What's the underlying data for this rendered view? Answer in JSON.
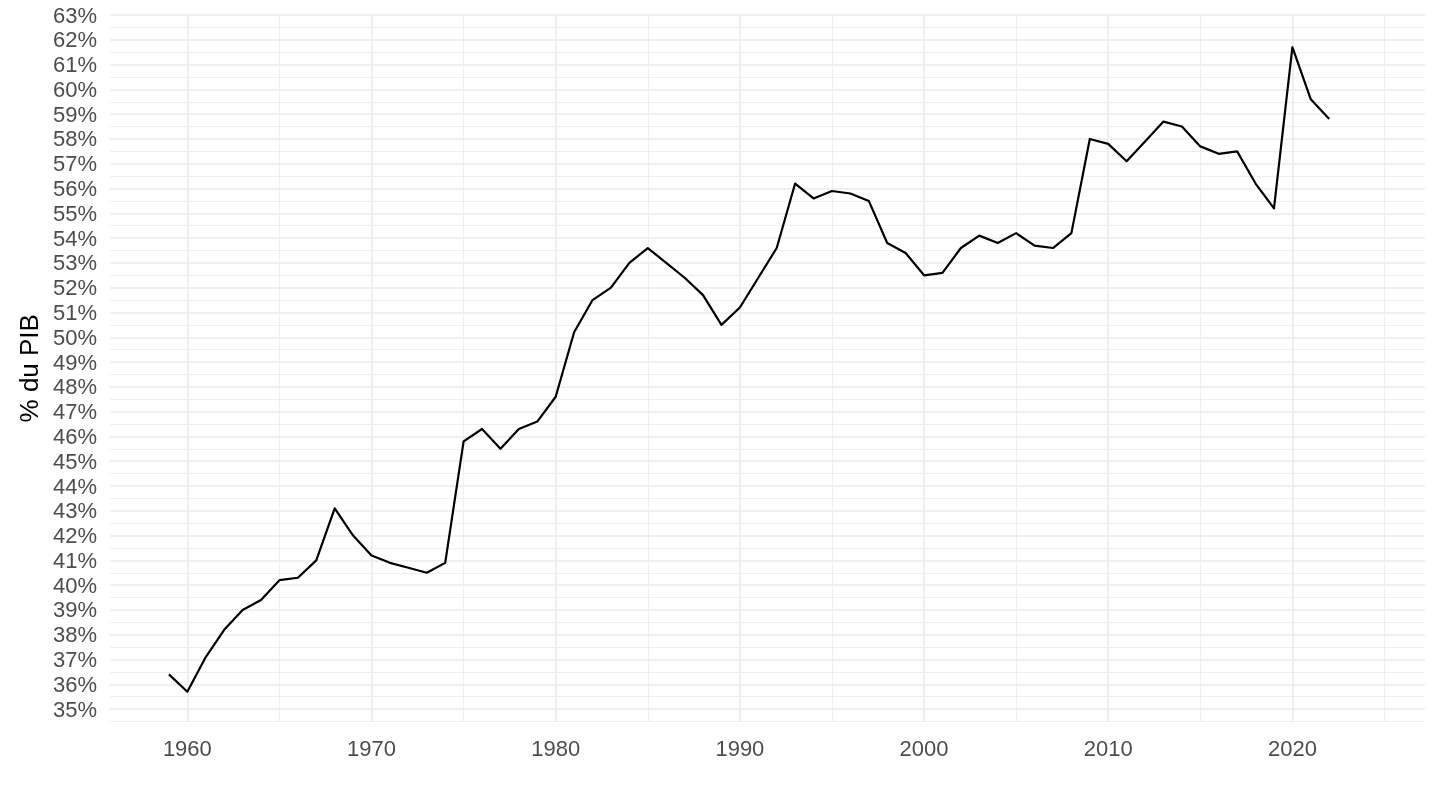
{
  "chart_data": {
    "type": "line",
    "ylabel": "% du PIB",
    "x": [
      1959,
      1960,
      1961,
      1962,
      1963,
      1964,
      1965,
      1966,
      1967,
      1968,
      1969,
      1970,
      1971,
      1972,
      1973,
      1974,
      1975,
      1976,
      1977,
      1978,
      1979,
      1980,
      1981,
      1982,
      1983,
      1984,
      1985,
      1986,
      1987,
      1988,
      1989,
      1990,
      1991,
      1992,
      1993,
      1994,
      1995,
      1996,
      1997,
      1998,
      1999,
      2000,
      2001,
      2002,
      2003,
      2004,
      2005,
      2006,
      2007,
      2008,
      2009,
      2010,
      2011,
      2012,
      2013,
      2014,
      2015,
      2016,
      2017,
      2018,
      2019,
      2020,
      2021,
      2022
    ],
    "series": [
      {
        "color": "#000000",
        "values": [
          36.4,
          35.7,
          37.1,
          38.2,
          39.0,
          39.4,
          40.2,
          40.3,
          41.0,
          43.1,
          42.0,
          41.2,
          40.9,
          40.7,
          40.5,
          40.9,
          45.8,
          46.3,
          45.5,
          46.3,
          46.6,
          47.6,
          50.2,
          51.5,
          52.0,
          53.0,
          53.6,
          53.0,
          52.4,
          51.7,
          50.5,
          51.2,
          52.4,
          53.6,
          56.2,
          55.6,
          55.9,
          55.8,
          55.5,
          53.8,
          53.4,
          52.5,
          52.6,
          53.6,
          54.1,
          53.8,
          54.2,
          53.7,
          53.6,
          54.2,
          58.0,
          57.8,
          57.1,
          57.9,
          58.7,
          58.5,
          57.7,
          57.4,
          57.5,
          56.2,
          55.2,
          61.7,
          59.6,
          58.8
        ]
      }
    ],
    "xlim": [
      1955.8,
      2027.2
    ],
    "xticks": [
      1960,
      {
        "value": 1965,
        "label": null
      },
      1970,
      {
        "value": 1975,
        "label": null
      },
      1980,
      {
        "value": 1985,
        "label": null
      },
      1990,
      {
        "value": 1995,
        "label": null
      },
      2000,
      {
        "value": 2005,
        "label": null
      },
      2010,
      {
        "value": 2015,
        "label": null
      },
      2020,
      {
        "value": 2025,
        "label": null
      }
    ],
    "ylim": [
      34.5,
      63
    ],
    "yticks": [
      {
        "value": 34.5,
        "label": null
      },
      {
        "value": 35,
        "label": "35%"
      },
      {
        "value": 35.5,
        "label": null
      },
      {
        "value": 36,
        "label": "36%"
      },
      {
        "value": 36.5,
        "label": null
      },
      {
        "value": 37,
        "label": "37%"
      },
      {
        "value": 37.5,
        "label": null
      },
      {
        "value": 38,
        "label": "38%"
      },
      {
        "value": 38.5,
        "label": null
      },
      {
        "value": 39,
        "label": "39%"
      },
      {
        "value": 39.5,
        "label": null
      },
      {
        "value": 40,
        "label": "40%"
      },
      {
        "value": 40.5,
        "label": null
      },
      {
        "value": 41,
        "label": "41%"
      },
      {
        "value": 41.5,
        "label": null
      },
      {
        "value": 42,
        "label": "42%"
      },
      {
        "value": 42.5,
        "label": null
      },
      {
        "value": 43,
        "label": "43%"
      },
      {
        "value": 43.5,
        "label": null
      },
      {
        "value": 44,
        "label": "44%"
      },
      {
        "value": 44.5,
        "label": null
      },
      {
        "value": 45,
        "label": "45%"
      },
      {
        "value": 45.5,
        "label": null
      },
      {
        "value": 46,
        "label": "46%"
      },
      {
        "value": 46.5,
        "label": null
      },
      {
        "value": 47,
        "label": "47%"
      },
      {
        "value": 47.5,
        "label": null
      },
      {
        "value": 48,
        "label": "48%"
      },
      {
        "value": 48.5,
        "label": null
      },
      {
        "value": 49,
        "label": "49%"
      },
      {
        "value": 49.5,
        "label": null
      },
      {
        "value": 50,
        "label": "50%"
      },
      {
        "value": 50.5,
        "label": null
      },
      {
        "value": 51,
        "label": "51%"
      },
      {
        "value": 51.5,
        "label": null
      },
      {
        "value": 52,
        "label": "52%"
      },
      {
        "value": 52.5,
        "label": null
      },
      {
        "value": 53,
        "label": "53%"
      },
      {
        "value": 53.5,
        "label": null
      },
      {
        "value": 54,
        "label": "54%"
      },
      {
        "value": 54.5,
        "label": null
      },
      {
        "value": 55,
        "label": "55%"
      },
      {
        "value": 55.5,
        "label": null
      },
      {
        "value": 56,
        "label": "56%"
      },
      {
        "value": 56.5,
        "label": null
      },
      {
        "value": 57,
        "label": "57%"
      },
      {
        "value": 57.5,
        "label": null
      },
      {
        "value": 58,
        "label": "58%"
      },
      {
        "value": 58.5,
        "label": null
      },
      {
        "value": 59,
        "label": "59%"
      },
      {
        "value": 59.5,
        "label": null
      },
      {
        "value": 60,
        "label": "60%"
      },
      {
        "value": 60.5,
        "label": null
      },
      {
        "value": 61,
        "label": "61%"
      },
      {
        "value": 61.5,
        "label": null
      },
      {
        "value": 62,
        "label": "62%"
      },
      {
        "value": 62.5,
        "label": null
      },
      {
        "value": 63,
        "label": "63%"
      }
    ],
    "grid": true
  }
}
